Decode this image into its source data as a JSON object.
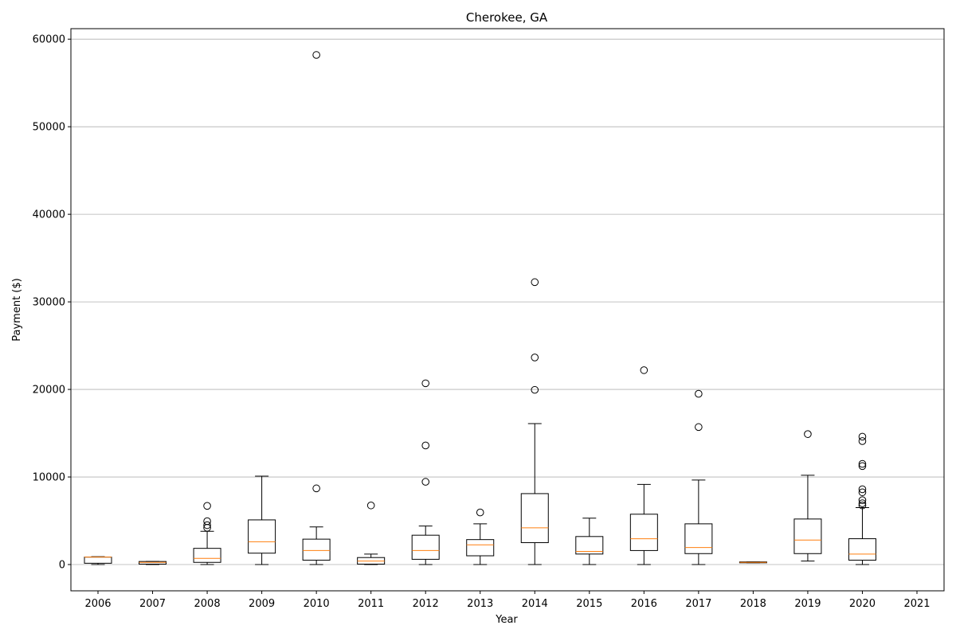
{
  "chart_data": {
    "type": "box",
    "title": "Cherokee, GA",
    "xlabel": "Year",
    "ylabel": "Payment ($)",
    "ylim": [
      -3000,
      61200
    ],
    "yticks": [
      0,
      10000,
      20000,
      30000,
      40000,
      50000,
      60000
    ],
    "ytick_labels": [
      "0",
      "10000",
      "20000",
      "30000",
      "40000",
      "50000",
      "60000"
    ],
    "grid": "y",
    "categories": [
      "2006",
      "2007",
      "2008",
      "2009",
      "2010",
      "2011",
      "2012",
      "2013",
      "2014",
      "2015",
      "2016",
      "2017",
      "2018",
      "2019",
      "2020",
      "2021"
    ],
    "boxes": [
      {
        "year": "2006",
        "whisker_low": 0,
        "q1": 150,
        "median": 850,
        "q3": 850,
        "whisker_high": 900,
        "outliers": []
      },
      {
        "year": "2007",
        "whisker_low": 0,
        "q1": 50,
        "median": 250,
        "q3": 350,
        "whisker_high": 350,
        "outliers": []
      },
      {
        "year": "2008",
        "whisker_low": 0,
        "q1": 250,
        "median": 700,
        "q3": 1850,
        "whisker_high": 3800,
        "outliers": [
          4200,
          4500,
          4950,
          6700
        ]
      },
      {
        "year": "2009",
        "whisker_low": 0,
        "q1": 1300,
        "median": 2600,
        "q3": 5100,
        "whisker_high": 10100,
        "outliers": []
      },
      {
        "year": "2010",
        "whisker_low": 0,
        "q1": 500,
        "median": 1600,
        "q3": 2900,
        "whisker_high": 4300,
        "outliers": [
          8700,
          58200
        ]
      },
      {
        "year": "2011",
        "whisker_low": 0,
        "q1": 50,
        "median": 400,
        "q3": 800,
        "whisker_high": 1200,
        "outliers": [
          6750
        ]
      },
      {
        "year": "2012",
        "whisker_low": 0,
        "q1": 600,
        "median": 1600,
        "q3": 3350,
        "whisker_high": 4400,
        "outliers": [
          9450,
          13600,
          20700
        ]
      },
      {
        "year": "2013",
        "whisker_low": 0,
        "q1": 1000,
        "median": 2250,
        "q3": 2850,
        "whisker_high": 4650,
        "outliers": [
          5950
        ]
      },
      {
        "year": "2014",
        "whisker_low": 0,
        "q1": 2500,
        "median": 4200,
        "q3": 8100,
        "whisker_high": 16100,
        "outliers": [
          19950,
          23650,
          32250
        ]
      },
      {
        "year": "2015",
        "whisker_low": 0,
        "q1": 1200,
        "median": 1500,
        "q3": 3200,
        "whisker_high": 5300,
        "outliers": []
      },
      {
        "year": "2016",
        "whisker_low": 0,
        "q1": 1600,
        "median": 2950,
        "q3": 5750,
        "whisker_high": 9150,
        "outliers": [
          22200
        ]
      },
      {
        "year": "2017",
        "whisker_low": 0,
        "q1": 1250,
        "median": 1950,
        "q3": 4650,
        "whisker_high": 9650,
        "outliers": [
          15700,
          19500
        ]
      },
      {
        "year": "2018",
        "whisker_low": 200,
        "q1": 200,
        "median": 250,
        "q3": 300,
        "whisker_high": 300,
        "outliers": []
      },
      {
        "year": "2019",
        "whisker_low": 400,
        "q1": 1250,
        "median": 2800,
        "q3": 5200,
        "whisker_high": 10200,
        "outliers": [
          14900
        ]
      },
      {
        "year": "2020",
        "whisker_low": 0,
        "q1": 500,
        "median": 1200,
        "q3": 2950,
        "whisker_high": 6500,
        "outliers": [
          6750,
          7000,
          7350,
          8250,
          8600,
          11250,
          11500,
          14100,
          14600
        ]
      },
      {
        "year": "2021",
        "whisker_low": null,
        "q1": null,
        "median": null,
        "q3": null,
        "whisker_high": null,
        "outliers": []
      }
    ],
    "colors": {
      "box": "#000000",
      "median": "#ff7f0e",
      "grid": "#b0b0b0"
    }
  }
}
